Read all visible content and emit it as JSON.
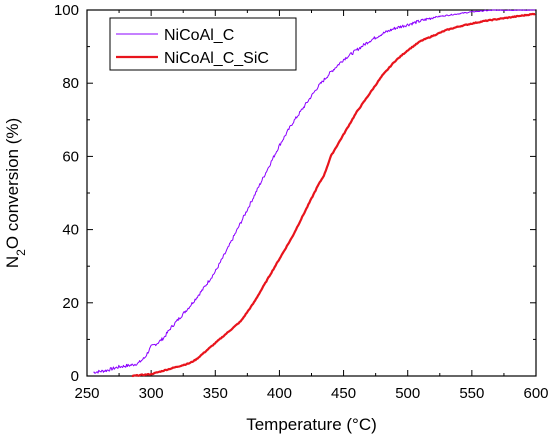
{
  "chart_data": {
    "type": "line",
    "xlabel": "Temperature (°C)",
    "ylabel_prefix": "N",
    "ylabel_subscript": "2",
    "ylabel_suffix": "O conversion (%)",
    "xlim": [
      250,
      600
    ],
    "ylim": [
      0,
      100
    ],
    "xticks": [
      250,
      300,
      350,
      400,
      450,
      500,
      550,
      600
    ],
    "yticks": [
      0,
      20,
      40,
      60,
      80,
      100
    ],
    "grid": false,
    "legend_position": "top-left",
    "series": [
      {
        "name": "NiCoAl_C",
        "color": "#8b00ff",
        "style": "noisy-thin",
        "x": [
          255,
          265,
          275,
          285,
          290,
          295,
          300,
          305,
          310,
          315,
          320,
          330,
          340,
          350,
          360,
          370,
          380,
          390,
          400,
          410,
          420,
          430,
          440,
          450,
          460,
          470,
          480,
          490,
          500,
          510,
          520,
          530,
          540,
          550,
          560,
          570,
          580,
          590,
          600
        ],
        "y": [
          1,
          1.5,
          2.5,
          3,
          3.5,
          5,
          8,
          9,
          10.5,
          13,
          15,
          19,
          23.5,
          28.5,
          35,
          42,
          49,
          56,
          63,
          69,
          74,
          79,
          83,
          86.5,
          89,
          91.5,
          93.5,
          95,
          96,
          97,
          98,
          98.5,
          99,
          99.5,
          99.8,
          100,
          100,
          100,
          100
        ]
      },
      {
        "name": "NiCoAl_C_SiC",
        "color": "#e8141c",
        "style": "thick",
        "x": [
          285,
          290,
          300,
          310,
          320,
          330,
          335,
          340,
          350,
          360,
          370,
          380,
          390,
          400,
          410,
          420,
          430,
          435,
          440,
          450,
          460,
          470,
          480,
          490,
          500,
          510,
          520,
          530,
          540,
          550,
          560,
          570,
          580,
          590,
          600
        ],
        "y": [
          0,
          0.2,
          0.5,
          1.5,
          2.5,
          3.5,
          4.5,
          6,
          9,
          12,
          15,
          20,
          26,
          32,
          38,
          45,
          52,
          55,
          60,
          66,
          72,
          77,
          82,
          86,
          89,
          91.5,
          93,
          94.5,
          95.5,
          96.3,
          97,
          97.5,
          98,
          98.5,
          99
        ]
      }
    ]
  }
}
